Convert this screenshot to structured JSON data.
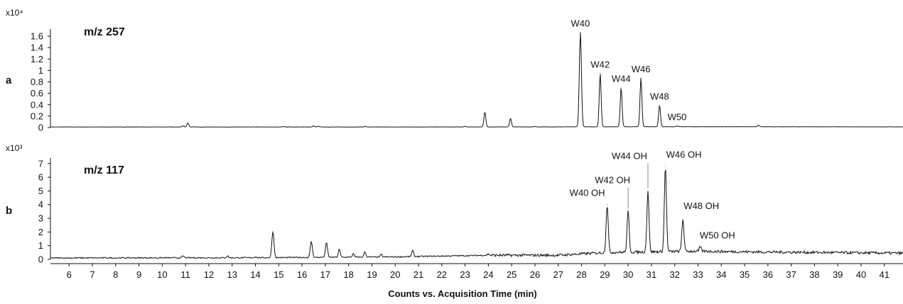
{
  "chart_data": {
    "type": "line",
    "xlabel": "Counts vs. Acquisition Time (min)",
    "xlim": [
      5.2,
      41.8
    ],
    "xticks": [
      6,
      7,
      8,
      9,
      10,
      11,
      12,
      13,
      14,
      15,
      16,
      17,
      18,
      19,
      20,
      21,
      22,
      23,
      24,
      25,
      26,
      27,
      28,
      29,
      30,
      31,
      32,
      33,
      34,
      35,
      36,
      37,
      38,
      39,
      40,
      41
    ],
    "panels": [
      {
        "label": "a",
        "ion": "m/z 257",
        "multiplier": "x10⁴",
        "ylim": [
          0,
          1.7
        ],
        "yticks": [
          "0",
          "0.2",
          "0.4",
          "0.6",
          "0.8",
          "1",
          "1.2",
          "1.4",
          "1.6"
        ],
        "baseline": [
          [
            5.2,
            0.01
          ],
          [
            10,
            0.01
          ],
          [
            20,
            0.01
          ],
          [
            27,
            0.012
          ],
          [
            30,
            0.015
          ],
          [
            35,
            0.015
          ],
          [
            41.8,
            0.012
          ]
        ],
        "peaks": [
          {
            "x": 10.9,
            "y": 0.03
          },
          {
            "x": 11.1,
            "y": 0.08
          },
          {
            "x": 15.2,
            "y": 0.02
          },
          {
            "x": 16.5,
            "y": 0.03
          },
          {
            "x": 16.7,
            "y": 0.025
          },
          {
            "x": 18.7,
            "y": 0.02
          },
          {
            "x": 23.0,
            "y": 0.02
          },
          {
            "x": 23.85,
            "y": 0.27
          },
          {
            "x": 24.95,
            "y": 0.16
          },
          {
            "x": 26.0,
            "y": 0.02
          },
          {
            "x": 27.95,
            "y": 1.67,
            "label": "W40"
          },
          {
            "x": 28.8,
            "y": 0.95,
            "label": "W42"
          },
          {
            "x": 29.7,
            "y": 0.7,
            "label": "W44"
          },
          {
            "x": 30.55,
            "y": 0.87,
            "label": "W46"
          },
          {
            "x": 31.35,
            "y": 0.39,
            "label": "W48"
          },
          {
            "x": 32.1,
            "y": 0.03,
            "label": "W50"
          },
          {
            "x": 35.6,
            "y": 0.04
          }
        ]
      },
      {
        "label": "b",
        "ion": "m/z 117",
        "multiplier": "x10³",
        "ylim": [
          0,
          7.3
        ],
        "yticks": [
          "0",
          "1",
          "2",
          "3",
          "4",
          "5",
          "6",
          "7"
        ],
        "baseline": [
          [
            5.2,
            0.1
          ],
          [
            14,
            0.12
          ],
          [
            20,
            0.18
          ],
          [
            24,
            0.3
          ],
          [
            27,
            0.3
          ],
          [
            29,
            0.5
          ],
          [
            33,
            0.6
          ],
          [
            35,
            0.55
          ],
          [
            41.8,
            0.45
          ]
        ],
        "peaks": [
          {
            "x": 10.9,
            "y": 0.25
          },
          {
            "x": 12.8,
            "y": 0.25
          },
          {
            "x": 14.0,
            "y": 0.2
          },
          {
            "x": 14.75,
            "y": 2.05
          },
          {
            "x": 16.4,
            "y": 1.3
          },
          {
            "x": 17.05,
            "y": 1.2
          },
          {
            "x": 17.6,
            "y": 0.75
          },
          {
            "x": 18.2,
            "y": 0.4
          },
          {
            "x": 18.7,
            "y": 0.55
          },
          {
            "x": 19.4,
            "y": 0.35
          },
          {
            "x": 20.75,
            "y": 0.65
          },
          {
            "x": 24.0,
            "y": 0.4
          },
          {
            "x": 29.1,
            "y": 4.0,
            "label": "W40 OH"
          },
          {
            "x": 30.0,
            "y": 3.5,
            "label": "W42 OH"
          },
          {
            "x": 30.85,
            "y": 5.0,
            "label": "W44 OH"
          },
          {
            "x": 31.6,
            "y": 6.8,
            "label": "W46 OH"
          },
          {
            "x": 32.35,
            "y": 2.95,
            "label": "W48 OH"
          },
          {
            "x": 33.1,
            "y": 0.9,
            "label": "W50 OH"
          }
        ]
      }
    ]
  }
}
